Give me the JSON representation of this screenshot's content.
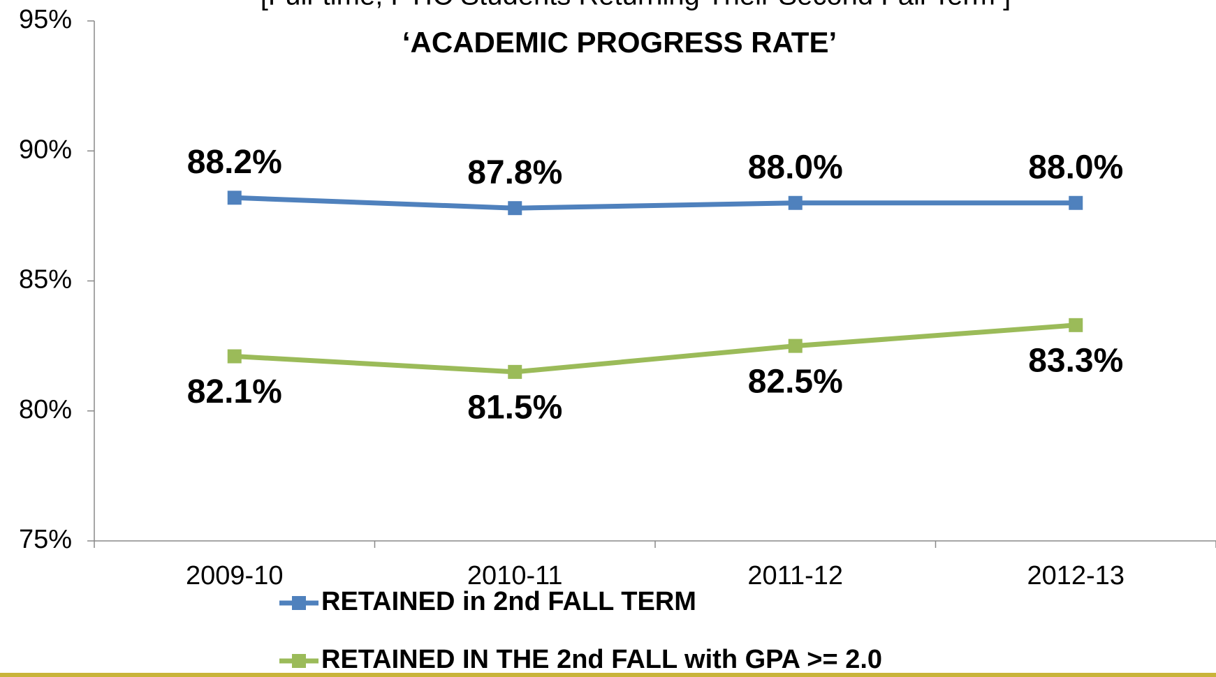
{
  "chart_data": {
    "type": "line",
    "subtitle": "[Full-time, FTIC Students Returning Their Second Fall Term ]",
    "title": "‘ACADEMIC PROGRESS  RATE’",
    "categories": [
      "2009-10",
      "2010-11",
      "2011-12",
      "2012-13"
    ],
    "series": [
      {
        "name": "RETAINED in 2nd FALL TERM",
        "color": "#4f81bd",
        "values": [
          88.2,
          87.8,
          88.0,
          88.0
        ],
        "value_labels": [
          "88.2%",
          "87.8%",
          "88.0%",
          "88.0%"
        ]
      },
      {
        "name": "RETAINED IN THE 2nd FALL with GPA >= 2.0",
        "color": "#9bbb59",
        "values": [
          82.1,
          81.5,
          82.5,
          83.3
        ],
        "value_labels": [
          "82.1%",
          "81.5%",
          "82.5%",
          "83.3%"
        ]
      }
    ],
    "ylim": [
      75,
      95
    ],
    "yticks": [
      {
        "value": 75,
        "label": "75%"
      },
      {
        "value": 80,
        "label": "80%"
      },
      {
        "value": 85,
        "label": "85%"
      },
      {
        "value": 90,
        "label": "90%"
      },
      {
        "value": 95,
        "label": "95%"
      }
    ],
    "legend": "bottom"
  }
}
